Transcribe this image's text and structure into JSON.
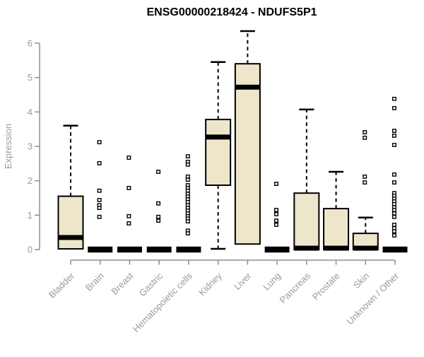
{
  "chart_data": {
    "type": "boxplot",
    "title": "ENSG00000218424 - NDUFS5P1",
    "ylabel": "Expression",
    "xlabel": "",
    "ylim": [
      0,
      6
    ],
    "yticks": [
      0,
      1,
      2,
      3,
      4,
      5,
      6
    ],
    "grid": false,
    "legend": false,
    "colors": {
      "box_fill": "#ede6cb",
      "box_stroke": "#000000",
      "axis_line": "#8f8f8f",
      "tick_label": "#9a9a9a",
      "title": "#000000"
    },
    "categories": [
      "Bladder",
      "Brain",
      "Breast",
      "Gastric",
      "Hematopoietic cells",
      "Kidney",
      "Liver",
      "Lung",
      "Pancreas",
      "Prostate",
      "Skin",
      "Unknown / Other"
    ],
    "series": [
      {
        "category": "Bladder",
        "whisker_low": 0,
        "q1": 0.02,
        "median": 0.35,
        "q3": 1.55,
        "whisker_high": 3.6,
        "outliers": []
      },
      {
        "category": "Brain",
        "whisker_low": 0,
        "q1": 0,
        "median": 0,
        "q3": 0,
        "whisker_high": 0,
        "outliers": [
          3.12,
          2.51,
          1.71,
          1.44,
          1.29,
          1.21,
          0.95
        ]
      },
      {
        "category": "Breast",
        "whisker_low": 0,
        "q1": 0,
        "median": 0,
        "q3": 0,
        "whisker_high": 0,
        "outliers": [
          2.67,
          1.79,
          0.97,
          0.76
        ]
      },
      {
        "category": "Gastric",
        "whisker_low": 0,
        "q1": 0,
        "median": 0,
        "q3": 0,
        "whisker_high": 0,
        "outliers": [
          2.26,
          1.34,
          0.95,
          0.84
        ]
      },
      {
        "category": "Hematopoietic cells",
        "whisker_low": 0,
        "q1": 0,
        "median": 0,
        "q3": 0,
        "whisker_high": 0,
        "outliers": [
          2.71,
          2.55,
          2.47,
          2.12,
          2.03,
          1.87,
          1.79,
          1.71,
          1.62,
          1.54,
          1.46,
          1.38,
          1.29,
          1.21,
          1.13,
          1.05,
          0.97,
          0.9,
          0.82,
          0.55,
          0.47
        ]
      },
      {
        "category": "Kidney",
        "whisker_low": 0.02,
        "q1": 1.87,
        "median": 3.27,
        "q3": 3.78,
        "whisker_high": 5.45,
        "outliers": []
      },
      {
        "category": "Liver",
        "whisker_low": 0.16,
        "q1": 0.16,
        "median": 4.72,
        "q3": 5.4,
        "whisker_high": 6.35,
        "outliers": []
      },
      {
        "category": "Lung",
        "whisker_low": 0,
        "q1": 0,
        "median": 0,
        "q3": 0,
        "whisker_high": 0,
        "outliers": [
          1.91,
          1.15,
          1.03,
          0.84,
          0.72
        ]
      },
      {
        "category": "Pancreas",
        "whisker_low": 0,
        "q1": 0,
        "median": 0.04,
        "q3": 1.64,
        "whisker_high": 4.07,
        "outliers": []
      },
      {
        "category": "Prostate",
        "whisker_low": 0,
        "q1": 0,
        "median": 0.04,
        "q3": 1.19,
        "whisker_high": 2.26,
        "outliers": []
      },
      {
        "category": "Skin",
        "whisker_low": 0,
        "q1": 0,
        "median": 0.04,
        "q3": 0.47,
        "whisker_high": 0.93,
        "outliers": [
          3.41,
          3.25,
          2.12,
          1.95
        ]
      },
      {
        "category": "Unknown / Other",
        "whisker_low": 0,
        "q1": 0,
        "median": 0,
        "q3": 0,
        "whisker_high": 0,
        "outliers": [
          4.38,
          4.11,
          3.45,
          3.31,
          3.04,
          2.18,
          1.95,
          1.64,
          1.56,
          1.48,
          1.4,
          1.32,
          1.23,
          1.15,
          1.05,
          0.95,
          0.72,
          0.62,
          0.53,
          0.41
        ]
      }
    ]
  }
}
